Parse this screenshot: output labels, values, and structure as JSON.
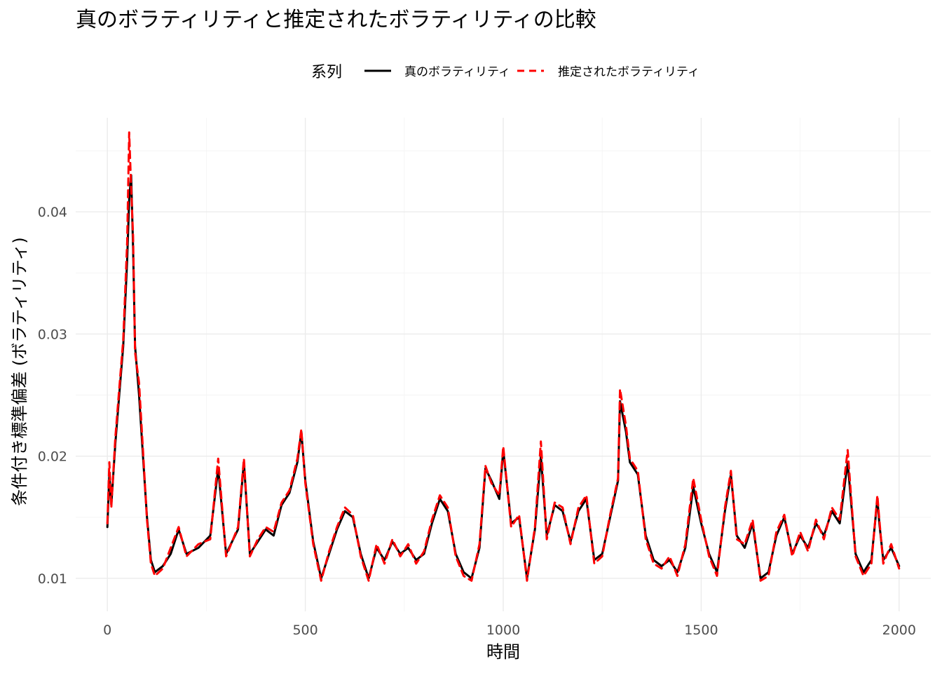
{
  "chart_data": {
    "type": "line",
    "title": "真のボラティリティと推定されたボラティリティの比較",
    "xlabel": "時間",
    "ylabel": "条件付き標準偏差 (ボラティリティ)",
    "legend": {
      "title": "系列",
      "placement": "top",
      "entries": [
        "真のボラティリティ",
        "推定されたボラティリティ"
      ]
    },
    "xlim": [
      -80,
      2080
    ],
    "ylim": [
      0.0073,
      0.0477
    ],
    "x_ticks": [
      0,
      500,
      1000,
      1500,
      2000
    ],
    "x_tick_labels": [
      "0",
      "500",
      "1000",
      "1500",
      "2000"
    ],
    "y_ticks": [
      0.01,
      0.02,
      0.03,
      0.04
    ],
    "y_tick_labels": [
      "0.01",
      "0.02",
      "0.03",
      "0.04"
    ],
    "grid": true,
    "series": [
      {
        "name": "真のボラティリティ",
        "color": "#000000",
        "style": "solid",
        "x": [
          0,
          5,
          10,
          20,
          30,
          40,
          50,
          55,
          60,
          65,
          70,
          80,
          90,
          100,
          110,
          120,
          140,
          160,
          180,
          200,
          230,
          260,
          280,
          300,
          330,
          345,
          360,
          380,
          400,
          420,
          440,
          460,
          480,
          490,
          500,
          520,
          540,
          560,
          580,
          600,
          620,
          640,
          660,
          680,
          700,
          720,
          740,
          760,
          780,
          800,
          820,
          840,
          860,
          880,
          900,
          920,
          940,
          955,
          970,
          990,
          1000,
          1020,
          1040,
          1060,
          1080,
          1095,
          1110,
          1130,
          1150,
          1170,
          1190,
          1210,
          1230,
          1250,
          1270,
          1290,
          1295,
          1310,
          1320,
          1340,
          1360,
          1380,
          1400,
          1420,
          1440,
          1460,
          1480,
          1500,
          1520,
          1540,
          1560,
          1575,
          1590,
          1610,
          1630,
          1650,
          1670,
          1690,
          1710,
          1730,
          1750,
          1770,
          1790,
          1810,
          1830,
          1850,
          1870,
          1890,
          1910,
          1930,
          1945,
          1950,
          1960,
          1980,
          2000
        ],
        "y": [
          0.0142,
          0.0185,
          0.016,
          0.021,
          0.025,
          0.029,
          0.036,
          0.041,
          0.043,
          0.037,
          0.029,
          0.025,
          0.02,
          0.015,
          0.0115,
          0.0105,
          0.011,
          0.012,
          0.014,
          0.012,
          0.0125,
          0.0135,
          0.019,
          0.012,
          0.014,
          0.0195,
          0.012,
          0.013,
          0.014,
          0.0135,
          0.016,
          0.017,
          0.0195,
          0.022,
          0.018,
          0.013,
          0.01,
          0.012,
          0.014,
          0.0155,
          0.015,
          0.012,
          0.01,
          0.0125,
          0.0115,
          0.013,
          0.012,
          0.0125,
          0.0115,
          0.012,
          0.0145,
          0.0165,
          0.0155,
          0.012,
          0.0105,
          0.01,
          0.0125,
          0.019,
          0.018,
          0.0165,
          0.0205,
          0.0145,
          0.015,
          0.01,
          0.014,
          0.02,
          0.0135,
          0.016,
          0.0155,
          0.013,
          0.0155,
          0.0165,
          0.0115,
          0.012,
          0.015,
          0.018,
          0.0245,
          0.022,
          0.0195,
          0.0185,
          0.0135,
          0.0115,
          0.011,
          0.0115,
          0.0105,
          0.0125,
          0.0175,
          0.0145,
          0.012,
          0.0105,
          0.0155,
          0.0185,
          0.0135,
          0.0125,
          0.0145,
          0.01,
          0.0105,
          0.0135,
          0.015,
          0.012,
          0.0135,
          0.0125,
          0.0145,
          0.0135,
          0.0155,
          0.0145,
          0.0195,
          0.012,
          0.0105,
          0.0115,
          0.0165,
          0.0145,
          0.0115,
          0.0125,
          0.011
        ]
      },
      {
        "name": "推定されたボラティリティ",
        "color": "#ff0000",
        "style": "dashed",
        "x": [
          0,
          5,
          10,
          20,
          30,
          40,
          50,
          55,
          60,
          65,
          70,
          80,
          90,
          100,
          110,
          120,
          140,
          160,
          180,
          200,
          230,
          260,
          280,
          300,
          330,
          345,
          360,
          380,
          400,
          420,
          440,
          460,
          480,
          490,
          500,
          520,
          540,
          560,
          580,
          600,
          620,
          640,
          660,
          680,
          700,
          720,
          740,
          760,
          780,
          800,
          820,
          840,
          860,
          880,
          900,
          920,
          940,
          955,
          970,
          990,
          1000,
          1020,
          1040,
          1060,
          1080,
          1095,
          1110,
          1130,
          1150,
          1170,
          1190,
          1210,
          1230,
          1250,
          1270,
          1290,
          1295,
          1310,
          1320,
          1340,
          1360,
          1380,
          1400,
          1420,
          1440,
          1460,
          1480,
          1500,
          1520,
          1540,
          1560,
          1575,
          1590,
          1610,
          1630,
          1650,
          1670,
          1690,
          1710,
          1730,
          1750,
          1770,
          1790,
          1810,
          1830,
          1850,
          1870,
          1890,
          1910,
          1930,
          1945,
          1950,
          1960,
          1980,
          2000
        ],
        "y": [
          0.0145,
          0.0195,
          0.0158,
          0.0215,
          0.0255,
          0.0295,
          0.0375,
          0.0465,
          0.042,
          0.038,
          0.0285,
          0.026,
          0.0205,
          0.0148,
          0.0112,
          0.0102,
          0.0108,
          0.0125,
          0.0142,
          0.0118,
          0.0128,
          0.0132,
          0.0198,
          0.0118,
          0.0142,
          0.0198,
          0.0118,
          0.0132,
          0.0142,
          0.0138,
          0.0162,
          0.0172,
          0.0198,
          0.0222,
          0.0178,
          0.0128,
          0.0098,
          0.0122,
          0.0142,
          0.0158,
          0.0152,
          0.0118,
          0.0098,
          0.0128,
          0.0112,
          0.0132,
          0.0118,
          0.0128,
          0.0112,
          0.0122,
          0.0148,
          0.0168,
          0.0158,
          0.0118,
          0.0102,
          0.0098,
          0.0128,
          0.0192,
          0.0178,
          0.0168,
          0.0208,
          0.0142,
          0.0152,
          0.0098,
          0.0142,
          0.0212,
          0.0132,
          0.0162,
          0.0158,
          0.0128,
          0.0158,
          0.0168,
          0.0112,
          0.0118,
          0.0152,
          0.0182,
          0.0255,
          0.0225,
          0.0198,
          0.0188,
          0.0132,
          0.0112,
          0.0108,
          0.0118,
          0.0102,
          0.0128,
          0.0182,
          0.0148,
          0.0118,
          0.0102,
          0.0158,
          0.0188,
          0.0132,
          0.0128,
          0.0148,
          0.0098,
          0.0102,
          0.0138,
          0.0152,
          0.0118,
          0.0138,
          0.0122,
          0.0148,
          0.0132,
          0.0158,
          0.0148,
          0.0205,
          0.0118,
          0.0102,
          0.0112,
          0.0168,
          0.0148,
          0.0112,
          0.0128,
          0.0108
        ]
      }
    ]
  }
}
